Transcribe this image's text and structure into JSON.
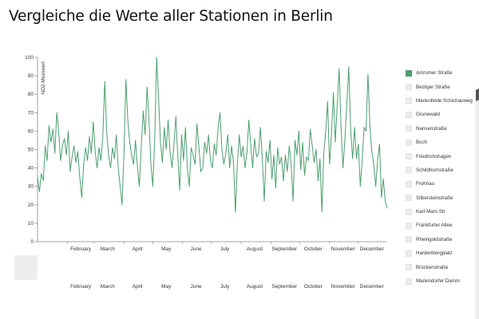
{
  "page": {
    "title": "Vergleiche die Werte aller Stationen in Berlin"
  },
  "colors": {
    "line": "#4e9e6f",
    "axis": "#888888",
    "inactive_swatch": "#ececec"
  },
  "legend": {
    "items": [
      {
        "label": "Amrumer Straße",
        "active": true
      },
      {
        "label": "Belziger Straße",
        "active": false
      },
      {
        "label": "Marienfelde Schichauweg",
        "active": false
      },
      {
        "label": "Grunewald",
        "active": false
      },
      {
        "label": "Nansenstraße",
        "active": false
      },
      {
        "label": "Buch",
        "active": false
      },
      {
        "label": "Friedrichshagen",
        "active": false
      },
      {
        "label": "Schildhornstraße",
        "active": false
      },
      {
        "label": "Frohnau",
        "active": false
      },
      {
        "label": "Silbersteinstraße",
        "active": false
      },
      {
        "label": "Karl-Marx-Str",
        "active": false
      },
      {
        "label": "Frankfurter Allee",
        "active": false
      },
      {
        "label": "Rheingoldstraße",
        "active": false
      },
      {
        "label": "Hardenbergplatz",
        "active": false
      },
      {
        "label": "Brückenstraße",
        "active": false
      },
      {
        "label": "Mariendorfer Damm",
        "active": false
      }
    ]
  },
  "context_axis": {
    "months": [
      "February",
      "March",
      "April",
      "May",
      "June",
      "July",
      "August",
      "September",
      "October",
      "November",
      "December"
    ]
  },
  "chart_data": {
    "type": "line",
    "title": "Vergleiche die Werte aller Stationen in Berlin",
    "xlabel": "",
    "ylabel": "NO2-Messwert",
    "ylim": [
      0,
      100
    ],
    "yticks": [
      0,
      10,
      20,
      30,
      40,
      50,
      60,
      70,
      80,
      90,
      100
    ],
    "xlim_days": [
      1,
      365
    ],
    "x_unit": "day of year",
    "month_ticks": [
      {
        "label": "February",
        "day": 32
      },
      {
        "label": "March",
        "day": 60
      },
      {
        "label": "April",
        "day": 91
      },
      {
        "label": "May",
        "day": 121
      },
      {
        "label": "June",
        "day": 152
      },
      {
        "label": "July",
        "day": 182
      },
      {
        "label": "August",
        "day": 213
      },
      {
        "label": "September",
        "day": 244
      },
      {
        "label": "October",
        "day": 274
      },
      {
        "label": "November",
        "day": 305
      },
      {
        "label": "December",
        "day": 335
      }
    ],
    "grid": false,
    "legend_position": "right",
    "series": [
      {
        "name": "Amrumer Straße",
        "color": "#4e9e6f",
        "points": [
          [
            1,
            35
          ],
          [
            3,
            27
          ],
          [
            5,
            37
          ],
          [
            7,
            33
          ],
          [
            9,
            52
          ],
          [
            11,
            44
          ],
          [
            13,
            63
          ],
          [
            15,
            54
          ],
          [
            17,
            61
          ],
          [
            19,
            48
          ],
          [
            21,
            70
          ],
          [
            23,
            60
          ],
          [
            25,
            44
          ],
          [
            27,
            52
          ],
          [
            29,
            56
          ],
          [
            31,
            47
          ],
          [
            33,
            60
          ],
          [
            35,
            38
          ],
          [
            37,
            46
          ],
          [
            39,
            52
          ],
          [
            41,
            43
          ],
          [
            43,
            49
          ],
          [
            45,
            35
          ],
          [
            47,
            24
          ],
          [
            49,
            42
          ],
          [
            51,
            51
          ],
          [
            53,
            44
          ],
          [
            55,
            57
          ],
          [
            57,
            48
          ],
          [
            59,
            65
          ],
          [
            61,
            49
          ],
          [
            63,
            40
          ],
          [
            65,
            51
          ],
          [
            67,
            44
          ],
          [
            69,
            57
          ],
          [
            71,
            87
          ],
          [
            73,
            60
          ],
          [
            75,
            47
          ],
          [
            77,
            40
          ],
          [
            79,
            51
          ],
          [
            81,
            45
          ],
          [
            83,
            58
          ],
          [
            85,
            40
          ],
          [
            87,
            30
          ],
          [
            89,
            20
          ],
          [
            91,
            48
          ],
          [
            93,
            88
          ],
          [
            95,
            66
          ],
          [
            97,
            54
          ],
          [
            99,
            47
          ],
          [
            101,
            42
          ],
          [
            103,
            55
          ],
          [
            105,
            41
          ],
          [
            107,
            30
          ],
          [
            109,
            52
          ],
          [
            111,
            71
          ],
          [
            113,
            58
          ],
          [
            115,
            84
          ],
          [
            117,
            66
          ],
          [
            119,
            42
          ],
          [
            121,
            30
          ],
          [
            123,
            55
          ],
          [
            125,
            100
          ],
          [
            127,
            78
          ],
          [
            129,
            54
          ],
          [
            131,
            43
          ],
          [
            133,
            62
          ],
          [
            135,
            50
          ],
          [
            137,
            66
          ],
          [
            139,
            48
          ],
          [
            141,
            40
          ],
          [
            143,
            53
          ],
          [
            145,
            68
          ],
          [
            147,
            46
          ],
          [
            149,
            28
          ],
          [
            151,
            58
          ],
          [
            153,
            44
          ],
          [
            155,
            62
          ],
          [
            157,
            40
          ],
          [
            159,
            30
          ],
          [
            161,
            51
          ],
          [
            163,
            47
          ],
          [
            165,
            42
          ],
          [
            167,
            64
          ],
          [
            169,
            51
          ],
          [
            171,
            38
          ],
          [
            173,
            40
          ],
          [
            175,
            54
          ],
          [
            177,
            48
          ],
          [
            179,
            58
          ],
          [
            181,
            44
          ],
          [
            183,
            40
          ],
          [
            185,
            53
          ],
          [
            187,
            47
          ],
          [
            189,
            62
          ],
          [
            191,
            70
          ],
          [
            193,
            50
          ],
          [
            195,
            42
          ],
          [
            197,
            48
          ],
          [
            199,
            58
          ],
          [
            201,
            40
          ],
          [
            203,
            52
          ],
          [
            205,
            43
          ],
          [
            207,
            16
          ],
          [
            209,
            42
          ],
          [
            211,
            58
          ],
          [
            213,
            46
          ],
          [
            215,
            52
          ],
          [
            217,
            40
          ],
          [
            219,
            48
          ],
          [
            221,
            66
          ],
          [
            223,
            52
          ],
          [
            225,
            40
          ],
          [
            227,
            56
          ],
          [
            229,
            46
          ],
          [
            231,
            48
          ],
          [
            233,
            62
          ],
          [
            235,
            45
          ],
          [
            237,
            22
          ],
          [
            239,
            49
          ],
          [
            241,
            43
          ],
          [
            243,
            55
          ],
          [
            245,
            34
          ],
          [
            247,
            47
          ],
          [
            249,
            29
          ],
          [
            251,
            51
          ],
          [
            253,
            42
          ],
          [
            255,
            46
          ],
          [
            257,
            33
          ],
          [
            259,
            47
          ],
          [
            261,
            38
          ],
          [
            263,
            52
          ],
          [
            265,
            42
          ],
          [
            267,
            22
          ],
          [
            269,
            55
          ],
          [
            271,
            47
          ],
          [
            273,
            60
          ],
          [
            275,
            39
          ],
          [
            277,
            54
          ],
          [
            279,
            36
          ],
          [
            281,
            46
          ],
          [
            283,
            44
          ],
          [
            285,
            61
          ],
          [
            287,
            52
          ],
          [
            289,
            43
          ],
          [
            291,
            50
          ],
          [
            293,
            33
          ],
          [
            295,
            45
          ],
          [
            297,
            16
          ],
          [
            299,
            48
          ],
          [
            301,
            60
          ],
          [
            303,
            76
          ],
          [
            305,
            42
          ],
          [
            307,
            58
          ],
          [
            309,
            81
          ],
          [
            311,
            54
          ],
          [
            313,
            74
          ],
          [
            315,
            94
          ],
          [
            317,
            62
          ],
          [
            319,
            40
          ],
          [
            321,
            56
          ],
          [
            323,
            75
          ],
          [
            325,
            95
          ],
          [
            327,
            60
          ],
          [
            329,
            45
          ],
          [
            331,
            62
          ],
          [
            333,
            45
          ],
          [
            335,
            53
          ],
          [
            337,
            30
          ],
          [
            339,
            44
          ],
          [
            341,
            62
          ],
          [
            343,
            60
          ],
          [
            345,
            91
          ],
          [
            347,
            63
          ],
          [
            349,
            49
          ],
          [
            351,
            42
          ],
          [
            353,
            30
          ],
          [
            355,
            44
          ],
          [
            357,
            53
          ],
          [
            359,
            24
          ],
          [
            361,
            34
          ],
          [
            363,
            22
          ],
          [
            365,
            18
          ]
        ]
      }
    ]
  }
}
